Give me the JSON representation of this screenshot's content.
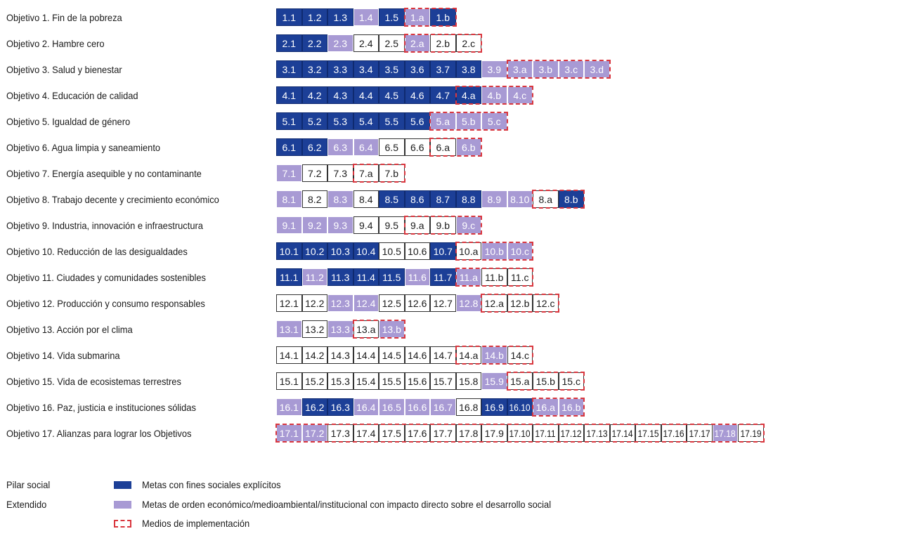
{
  "colors": {
    "social": "#1c3f97",
    "extended": "#a89ad4",
    "implementation_border": "#d9363e"
  },
  "rows": [
    {
      "label": "Objetivo 1. Fin de la pobreza",
      "cells": [
        [
          "1.1",
          "s"
        ],
        [
          "1.2",
          "s"
        ],
        [
          "1.3",
          "s"
        ],
        [
          "1.4",
          "e"
        ],
        [
          "1.5",
          "s"
        ],
        [
          "1.a",
          "e"
        ],
        [
          "1.b",
          "s"
        ]
      ],
      "mi_start": 5
    },
    {
      "label": "Objetivo 2. Hambre cero",
      "cells": [
        [
          "2.1",
          "s"
        ],
        [
          "2.2",
          "s"
        ],
        [
          "2.3",
          "e"
        ],
        [
          "2.4",
          "n"
        ],
        [
          "2.5",
          "n"
        ],
        [
          "2.a",
          "e"
        ],
        [
          "2.b",
          "n"
        ],
        [
          "2.c",
          "n"
        ]
      ],
      "mi_start": 5
    },
    {
      "label": "Objetivo 3. Salud y bienestar",
      "cells": [
        [
          "3.1",
          "s"
        ],
        [
          "3.2",
          "s"
        ],
        [
          "3.3",
          "s"
        ],
        [
          "3.4",
          "s"
        ],
        [
          "3.5",
          "s"
        ],
        [
          "3.6",
          "s"
        ],
        [
          "3.7",
          "s"
        ],
        [
          "3.8",
          "s"
        ],
        [
          "3.9",
          "e"
        ],
        [
          "3.a",
          "e"
        ],
        [
          "3.b",
          "e"
        ],
        [
          "3.c",
          "e"
        ],
        [
          "3.d",
          "e"
        ]
      ],
      "mi_start": 9
    },
    {
      "label": "Objetivo 4. Educación de calidad",
      "cells": [
        [
          "4.1",
          "s"
        ],
        [
          "4.2",
          "s"
        ],
        [
          "4.3",
          "s"
        ],
        [
          "4.4",
          "s"
        ],
        [
          "4.5",
          "s"
        ],
        [
          "4.6",
          "s"
        ],
        [
          "4.7",
          "s"
        ],
        [
          "4.a",
          "s"
        ],
        [
          "4.b",
          "e"
        ],
        [
          "4.c",
          "e"
        ]
      ],
      "mi_start": 7
    },
    {
      "label": "Objetivo 5. Igualdad de género",
      "cells": [
        [
          "5.1",
          "s"
        ],
        [
          "5.2",
          "s"
        ],
        [
          "5.3",
          "s"
        ],
        [
          "5.4",
          "s"
        ],
        [
          "5.5",
          "s"
        ],
        [
          "5.6",
          "s"
        ],
        [
          "5.a",
          "e"
        ],
        [
          "5.b",
          "e"
        ],
        [
          "5.c",
          "e"
        ]
      ],
      "mi_start": 6
    },
    {
      "label": "Objetivo 6. Agua limpia y saneamiento",
      "cells": [
        [
          "6.1",
          "s"
        ],
        [
          "6.2",
          "s"
        ],
        [
          "6.3",
          "e"
        ],
        [
          "6.4",
          "e"
        ],
        [
          "6.5",
          "n"
        ],
        [
          "6.6",
          "n"
        ],
        [
          "6.a",
          "n"
        ],
        [
          "6.b",
          "e"
        ]
      ],
      "mi_start": 6
    },
    {
      "label": "Objetivo 7. Energía asequible y no contaminante",
      "cells": [
        [
          "7.1",
          "e"
        ],
        [
          "7.2",
          "n"
        ],
        [
          "7.3",
          "n"
        ],
        [
          "7.a",
          "n"
        ],
        [
          "7.b",
          "n"
        ]
      ],
      "mi_start": 3
    },
    {
      "label": "Objetivo 8. Trabajo decente y crecimiento económico",
      "cells": [
        [
          "8.1",
          "e"
        ],
        [
          "8.2",
          "n"
        ],
        [
          "8.3",
          "e"
        ],
        [
          "8.4",
          "n"
        ],
        [
          "8.5",
          "s"
        ],
        [
          "8.6",
          "s"
        ],
        [
          "8.7",
          "s"
        ],
        [
          "8.8",
          "s"
        ],
        [
          "8.9",
          "e"
        ],
        [
          "8.10",
          "e"
        ],
        [
          "8.a",
          "n"
        ],
        [
          "8.b",
          "s"
        ]
      ],
      "mi_start": 10
    },
    {
      "label": "Objetivo 9. Industria, innovación e infraestructura",
      "cells": [
        [
          "9.1",
          "e"
        ],
        [
          "9.2",
          "e"
        ],
        [
          "9.3",
          "e"
        ],
        [
          "9.4",
          "n"
        ],
        [
          "9.5",
          "n"
        ],
        [
          "9.a",
          "n"
        ],
        [
          "9.b",
          "n"
        ],
        [
          "9.c",
          "e"
        ]
      ],
      "mi_start": 5
    },
    {
      "label": "Objetivo 10. Reducción de las desigualdades",
      "cells": [
        [
          "10.1",
          "s"
        ],
        [
          "10.2",
          "s"
        ],
        [
          "10.3",
          "s"
        ],
        [
          "10.4",
          "s"
        ],
        [
          "10.5",
          "n"
        ],
        [
          "10.6",
          "n"
        ],
        [
          "10.7",
          "s"
        ],
        [
          "10.a",
          "n"
        ],
        [
          "10.b",
          "e"
        ],
        [
          "10.c",
          "e"
        ]
      ],
      "mi_start": 7
    },
    {
      "label": "Objetivo 11. Ciudades y comunidades sostenibles",
      "cells": [
        [
          "11.1",
          "s"
        ],
        [
          "11.2",
          "e"
        ],
        [
          "11.3",
          "s"
        ],
        [
          "11.4",
          "s"
        ],
        [
          "11.5",
          "s"
        ],
        [
          "11.6",
          "e"
        ],
        [
          "11.7",
          "s"
        ],
        [
          "11.a",
          "e"
        ],
        [
          "11.b",
          "n"
        ],
        [
          "11.c",
          "n"
        ]
      ],
      "mi_start": 7
    },
    {
      "label": "Objetivo 12. Producción y consumo responsables",
      "cells": [
        [
          "12.1",
          "n"
        ],
        [
          "12.2",
          "n"
        ],
        [
          "12.3",
          "e"
        ],
        [
          "12.4",
          "e"
        ],
        [
          "12.5",
          "n"
        ],
        [
          "12.6",
          "n"
        ],
        [
          "12.7",
          "n"
        ],
        [
          "12.8",
          "e"
        ],
        [
          "12.a",
          "n"
        ],
        [
          "12.b",
          "n"
        ],
        [
          "12.c",
          "n"
        ]
      ],
      "mi_start": 8
    },
    {
      "label": "Objetivo 13. Acción por el clima",
      "cells": [
        [
          "13.1",
          "e"
        ],
        [
          "13.2",
          "n"
        ],
        [
          "13.3",
          "e"
        ],
        [
          "13.a",
          "n"
        ],
        [
          "13.b",
          "e"
        ]
      ],
      "mi_start": 3
    },
    {
      "label": "Objetivo 14. Vida submarina",
      "cells": [
        [
          "14.1",
          "n"
        ],
        [
          "14.2",
          "n"
        ],
        [
          "14.3",
          "n"
        ],
        [
          "14.4",
          "n"
        ],
        [
          "14.5",
          "n"
        ],
        [
          "14.6",
          "n"
        ],
        [
          "14.7",
          "n"
        ],
        [
          "14.a",
          "n"
        ],
        [
          "14.b",
          "e"
        ],
        [
          "14.c",
          "n"
        ]
      ],
      "mi_start": 7
    },
    {
      "label": "Objetivo 15. Vida de ecosistemas terrestres",
      "cells": [
        [
          "15.1",
          "n"
        ],
        [
          "15.2",
          "n"
        ],
        [
          "15.3",
          "n"
        ],
        [
          "15.4",
          "n"
        ],
        [
          "15.5",
          "n"
        ],
        [
          "15.6",
          "n"
        ],
        [
          "15.7",
          "n"
        ],
        [
          "15.8",
          "n"
        ],
        [
          "15.9",
          "e"
        ],
        [
          "15.a",
          "n"
        ],
        [
          "15.b",
          "n"
        ],
        [
          "15.c",
          "n"
        ]
      ],
      "mi_start": 9
    },
    {
      "label": "Objetivo 16. Paz, justicia e instituciones sólidas",
      "cells": [
        [
          "16.1",
          "e"
        ],
        [
          "16.2",
          "s"
        ],
        [
          "16.3",
          "s"
        ],
        [
          "16.4",
          "e"
        ],
        [
          "16.5",
          "e"
        ],
        [
          "16.6",
          "e"
        ],
        [
          "16.7",
          "e"
        ],
        [
          "16.8",
          "n"
        ],
        [
          "16.9",
          "s"
        ],
        [
          "16.10",
          "s"
        ],
        [
          "16.a",
          "e"
        ],
        [
          "16.b",
          "e"
        ]
      ],
      "mi_start": 10
    },
    {
      "label": "Objetivo 17. Alianzas para lograr los Objetivos",
      "cells": [
        [
          "17.1",
          "e"
        ],
        [
          "17.2",
          "e"
        ],
        [
          "17.3",
          "n"
        ],
        [
          "17.4",
          "n"
        ],
        [
          "17.5",
          "n"
        ],
        [
          "17.6",
          "n"
        ],
        [
          "17.7",
          "n"
        ],
        [
          "17.8",
          "n"
        ],
        [
          "17.9",
          "n"
        ],
        [
          "17.10",
          "n"
        ],
        [
          "17.11",
          "n"
        ],
        [
          "17.12",
          "n"
        ],
        [
          "17.13",
          "n"
        ],
        [
          "17.14",
          "n"
        ],
        [
          "17.15",
          "n"
        ],
        [
          "17.16",
          "n"
        ],
        [
          "17.17",
          "n"
        ],
        [
          "17.18",
          "e"
        ],
        [
          "17.19",
          "n"
        ]
      ],
      "mi_start": 0
    }
  ],
  "legend": {
    "social_label": "Pilar social",
    "social_text": "Metas con fines sociales explícitos",
    "extended_label": "Extendido",
    "extended_text": "Metas de orden económico/medioambiental/institucional con impacto directo sobre el desarrollo social",
    "implementation_text": "Medios de implementación"
  }
}
